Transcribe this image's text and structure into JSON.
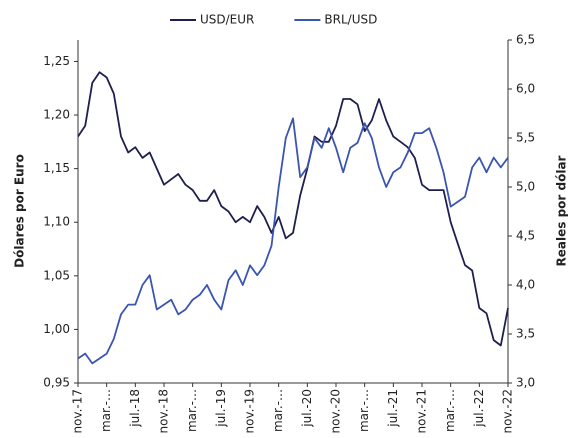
{
  "chart_data": {
    "type": "line",
    "categories": [
      "nov.-17",
      null,
      null,
      null,
      "mar.-…",
      null,
      null,
      null,
      "jul.-18",
      null,
      null,
      null,
      "nov.-18",
      null,
      null,
      null,
      "mar.-…",
      null,
      null,
      null,
      "jul.-19",
      null,
      null,
      null,
      "nov.-19",
      null,
      null,
      null,
      "mar.-…",
      null,
      null,
      null,
      "jul.-20",
      null,
      null,
      null,
      "nov.-20",
      null,
      null,
      null,
      "mar.-…",
      null,
      null,
      null,
      "jul.-21",
      null,
      null,
      null,
      "nov.-21",
      null,
      null,
      null,
      "mar.-…",
      null,
      null,
      null,
      "jul.-22",
      null,
      null,
      null,
      "nov.-22"
    ],
    "series": [
      {
        "name": "USD/EUR",
        "color": "#1f1f4f",
        "values": [
          1.18,
          1.19,
          1.23,
          1.24,
          1.235,
          1.22,
          1.18,
          1.165,
          1.17,
          1.16,
          1.165,
          1.15,
          1.135,
          1.14,
          1.145,
          1.135,
          1.13,
          1.12,
          1.12,
          1.13,
          1.115,
          1.11,
          1.1,
          1.105,
          1.1,
          1.115,
          1.105,
          1.09,
          1.105,
          1.085,
          1.09,
          1.125,
          1.15,
          1.18,
          1.175,
          1.175,
          1.19,
          1.215,
          1.215,
          1.21,
          1.185,
          1.195,
          1.215,
          1.195,
          1.18,
          1.175,
          1.17,
          1.16,
          1.135,
          1.13,
          1.13,
          1.13,
          1.1,
          1.08,
          1.06,
          1.055,
          1.02,
          1.015,
          0.99,
          0.985,
          1.02
        ]
      },
      {
        "name": "BRL/USD",
        "color": "#3a55b0",
        "axis": "y2",
        "values": [
          3.25,
          3.3,
          3.2,
          3.25,
          3.3,
          3.45,
          3.7,
          3.8,
          3.8,
          4.0,
          4.1,
          3.75,
          3.8,
          3.85,
          3.7,
          3.75,
          3.85,
          3.9,
          4.0,
          3.85,
          3.75,
          4.05,
          4.15,
          4.0,
          4.2,
          4.1,
          4.2,
          4.4,
          5.0,
          5.5,
          5.7,
          5.1,
          5.2,
          5.5,
          5.4,
          5.6,
          5.4,
          5.15,
          5.4,
          5.45,
          5.65,
          5.5,
          5.2,
          5.0,
          5.15,
          5.2,
          5.35,
          5.55,
          5.55,
          5.6,
          5.4,
          5.15,
          4.8,
          4.85,
          4.9,
          5.2,
          5.3,
          5.15,
          5.3,
          5.2,
          5.3
        ]
      }
    ],
    "ylabel": "Dólares por Euro",
    "y2label": "Reales por dólar",
    "ylim": [
      0.95,
      1.27
    ],
    "yticks": [
      {
        "value": 0.95,
        "label": "0,95"
      },
      {
        "value": 1.0,
        "label": "1,00"
      },
      {
        "value": 1.05,
        "label": "1,05"
      },
      {
        "value": 1.1,
        "label": "1,10"
      },
      {
        "value": 1.15,
        "label": "1,15"
      },
      {
        "value": 1.2,
        "label": "1,20"
      },
      {
        "value": 1.25,
        "label": "1,25"
      }
    ],
    "y2lim": [
      3.0,
      6.5
    ],
    "y2ticks": [
      {
        "value": 3.0,
        "label": "3,0"
      },
      {
        "value": 3.5,
        "label": "3,5"
      },
      {
        "value": 4.0,
        "label": "4,0"
      },
      {
        "value": 4.5,
        "label": "4,5"
      },
      {
        "value": 5.0,
        "label": "5,0"
      },
      {
        "value": 5.5,
        "label": "5,5"
      },
      {
        "value": 6.0,
        "label": "6,0"
      },
      {
        "value": 6.5,
        "label": "6,5"
      }
    ],
    "legend": "top"
  }
}
